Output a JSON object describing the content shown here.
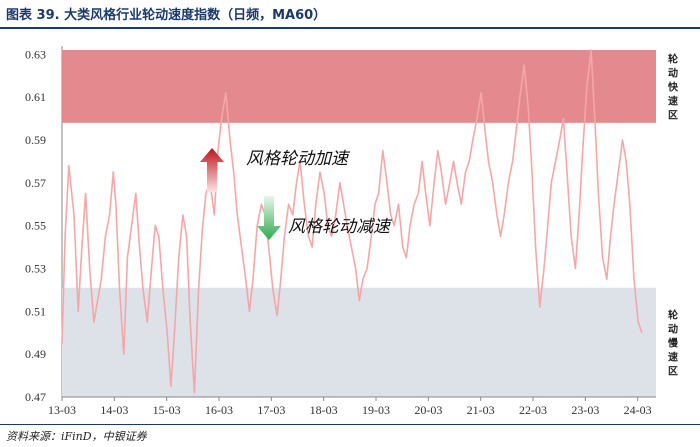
{
  "header": {
    "title": "图表 39. 大类风格行业轮动速度指数（日频，MA60）"
  },
  "footer": {
    "source": "资料来源：iFinD，中银证券"
  },
  "chart_data": {
    "type": "line",
    "title": "图表 39. 大类风格行业轮动速度指数（日频，MA60）",
    "ylim": [
      0.47,
      0.632
    ],
    "yticks": [
      "0.47",
      "0.49",
      "0.51",
      "0.53",
      "0.55",
      "0.57",
      "0.59",
      "0.61",
      "0.63"
    ],
    "xlabels": [
      "13-03",
      "14-03",
      "15-03",
      "16-03",
      "17-03",
      "18-03",
      "19-03",
      "20-03",
      "21-03",
      "22-03",
      "23-03",
      "24-03"
    ],
    "line_color": "#f4a7a8",
    "zones": [
      {
        "name": "fast",
        "label": "轮动快速区",
        "from": 0.598,
        "to": 0.632,
        "color": "#e48a8e"
      },
      {
        "name": "slow",
        "label": "轮动慢速区",
        "from": 0.47,
        "to": 0.521,
        "color": "#dde1e8"
      }
    ],
    "annotations": [
      {
        "text": "风格轮动加速",
        "arrow": "up",
        "color": "#c0121b"
      },
      {
        "text": "风格轮动减速",
        "arrow": "down",
        "color": "#2eaa4e"
      }
    ],
    "series": [
      {
        "x": [
          2013.17,
          2013.23,
          2013.3,
          2013.4,
          2013.48,
          2013.55,
          2013.62,
          2013.7,
          2013.78,
          2013.85,
          2013.92,
          2014.0,
          2014.08,
          2014.15,
          2014.2,
          2014.27,
          2014.35,
          2014.42,
          2014.5,
          2014.58,
          2014.65,
          2014.72,
          2014.8,
          2014.88,
          2014.95,
          2015.02,
          2015.1,
          2015.18,
          2015.25,
          2015.32,
          2015.4,
          2015.48,
          2015.55,
          2015.62,
          2015.7,
          2015.78,
          2015.85,
          2015.92,
          2016.0,
          2016.08,
          2016.15,
          2016.22,
          2016.3,
          2016.38,
          2016.45,
          2016.52,
          2016.6,
          2016.68,
          2016.75,
          2016.82,
          2016.9,
          2016.98,
          2017.05,
          2017.12,
          2017.2,
          2017.28,
          2017.35,
          2017.42,
          2017.5,
          2017.58,
          2017.65,
          2017.72,
          2017.8,
          2017.88,
          2017.95,
          2018.02,
          2018.1,
          2018.18,
          2018.25,
          2018.32,
          2018.4,
          2018.48,
          2018.55,
          2018.62,
          2018.7,
          2018.78,
          2018.85,
          2018.92,
          2019.0,
          2019.08,
          2019.15,
          2019.22,
          2019.3,
          2019.38,
          2019.45,
          2019.52,
          2019.6,
          2019.68,
          2019.75,
          2019.82,
          2019.9,
          2019.98,
          2020.05,
          2020.12,
          2020.2,
          2020.28,
          2020.35,
          2020.42,
          2020.5,
          2020.58,
          2020.65,
          2020.72,
          2020.8,
          2020.88,
          2020.95,
          2021.02,
          2021.1,
          2021.18,
          2021.25,
          2021.32,
          2021.4,
          2021.48,
          2021.55,
          2021.62,
          2021.7,
          2021.78,
          2021.85,
          2021.92,
          2022.0,
          2022.08,
          2022.15,
          2022.22,
          2022.3,
          2022.38,
          2022.45,
          2022.52,
          2022.6,
          2022.68,
          2022.75,
          2022.82,
          2022.9,
          2022.98,
          2023.05,
          2023.12,
          2023.2,
          2023.28,
          2023.35,
          2023.42,
          2023.5,
          2023.58,
          2023.65,
          2023.72,
          2023.8,
          2023.88,
          2023.95,
          2024.02,
          2024.1,
          2024.18,
          2024.25
        ],
        "y": [
          0.495,
          0.545,
          0.578,
          0.555,
          0.51,
          0.54,
          0.565,
          0.53,
          0.505,
          0.515,
          0.525,
          0.545,
          0.555,
          0.575,
          0.56,
          0.52,
          0.49,
          0.535,
          0.55,
          0.565,
          0.54,
          0.52,
          0.505,
          0.53,
          0.55,
          0.545,
          0.52,
          0.5,
          0.475,
          0.5,
          0.535,
          0.555,
          0.545,
          0.505,
          0.472,
          0.52,
          0.548,
          0.565,
          0.57,
          0.555,
          0.585,
          0.6,
          0.612,
          0.59,
          0.575,
          0.555,
          0.54,
          0.525,
          0.51,
          0.525,
          0.55,
          0.56,
          0.555,
          0.54,
          0.52,
          0.508,
          0.525,
          0.545,
          0.56,
          0.555,
          0.57,
          0.58,
          0.56,
          0.545,
          0.54,
          0.56,
          0.575,
          0.565,
          0.55,
          0.545,
          0.555,
          0.57,
          0.56,
          0.55,
          0.54,
          0.53,
          0.515,
          0.525,
          0.53,
          0.545,
          0.56,
          0.565,
          0.585,
          0.57,
          0.555,
          0.55,
          0.56,
          0.54,
          0.535,
          0.55,
          0.56,
          0.565,
          0.58,
          0.565,
          0.55,
          0.57,
          0.585,
          0.575,
          0.56,
          0.57,
          0.58,
          0.57,
          0.56,
          0.575,
          0.58,
          0.59,
          0.6,
          0.612,
          0.595,
          0.58,
          0.57,
          0.555,
          0.545,
          0.555,
          0.57,
          0.58,
          0.595,
          0.61,
          0.625,
          0.605,
          0.575,
          0.54,
          0.512,
          0.53,
          0.55,
          0.57,
          0.58,
          0.59,
          0.6,
          0.575,
          0.545,
          0.53,
          0.555,
          0.585,
          0.615,
          0.632,
          0.6,
          0.565,
          0.535,
          0.525,
          0.545,
          0.56,
          0.575,
          0.59,
          0.58,
          0.56,
          0.525,
          0.505,
          0.5
        ]
      }
    ]
  }
}
